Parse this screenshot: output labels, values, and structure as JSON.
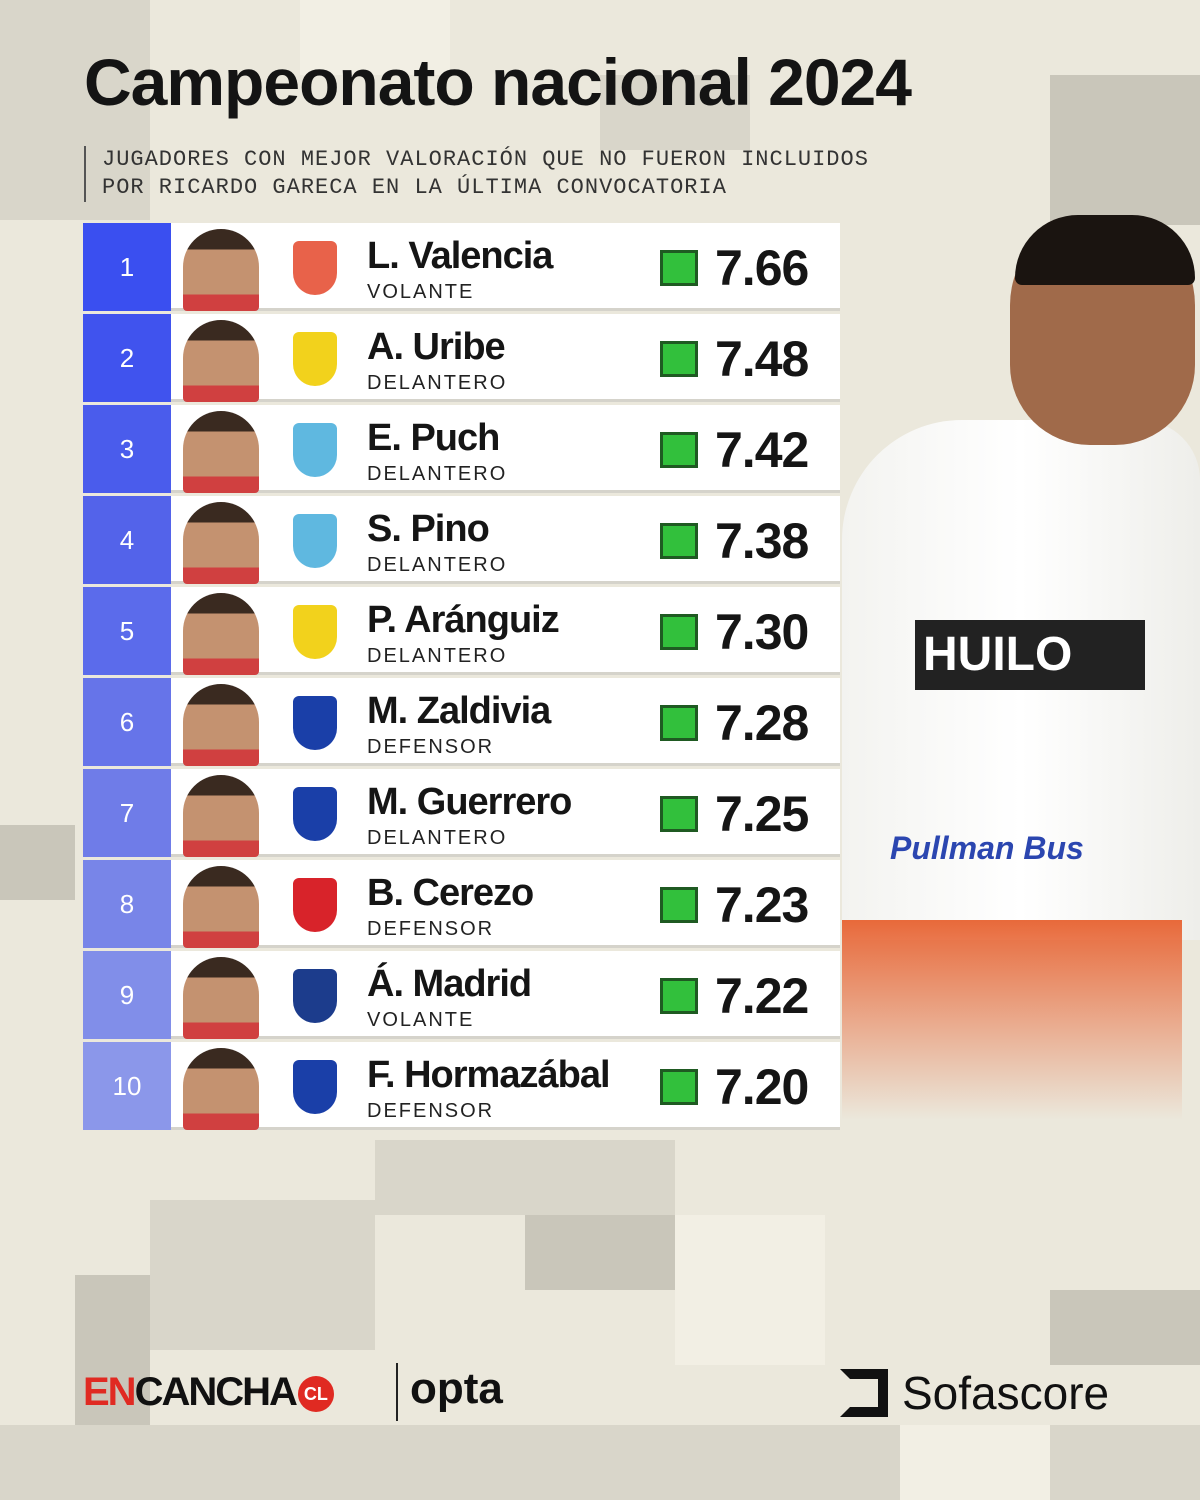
{
  "title": "Campeonato nacional 2024",
  "subtitle": [
    "JUGADORES CON MEJOR VALORACIÓN QUE NO FUERON INCLUIDOS",
    "POR RICARDO GARECA EN LA ÚLTIMA CONVOCATORIA"
  ],
  "rank_colors": [
    "#3a4ff0",
    "#4053ee",
    "#4a5cec",
    "#5363ea",
    "#5b6beb",
    "#6674e9",
    "#6f7ce8",
    "#7885e8",
    "#818ee9",
    "#8b97ea"
  ],
  "rating_color": "#32c03c",
  "players": [
    {
      "rank": "1",
      "name": "L. Valencia",
      "position": "VOLANTE",
      "rating": "7.66",
      "club_color": "#e8624a"
    },
    {
      "rank": "2",
      "name": "A. Uribe",
      "position": "DELANTERO",
      "rating": "7.48",
      "club_color": "#f2d21c"
    },
    {
      "rank": "3",
      "name": "E. Puch",
      "position": "DELANTERO",
      "rating": "7.42",
      "club_color": "#5fb8e0"
    },
    {
      "rank": "4",
      "name": "S. Pino",
      "position": "DELANTERO",
      "rating": "7.38",
      "club_color": "#5fb8e0"
    },
    {
      "rank": "5",
      "name": "P. Aránguiz",
      "position": "DELANTERO",
      "rating": "7.30",
      "club_color": "#f2d21c"
    },
    {
      "rank": "6",
      "name": "M. Zaldivia",
      "position": "DEFENSOR",
      "rating": "7.28",
      "club_color": "#1a3fa8"
    },
    {
      "rank": "7",
      "name": "M. Guerrero",
      "position": "DELANTERO",
      "rating": "7.25",
      "club_color": "#1a3fa8"
    },
    {
      "rank": "8",
      "name": "B. Cerezo",
      "position": "DEFENSOR",
      "rating": "7.23",
      "club_color": "#d8232a"
    },
    {
      "rank": "9",
      "name": "Á. Madrid",
      "position": "VOLANTE",
      "rating": "7.22",
      "club_color": "#1c3c8c"
    },
    {
      "rank": "10",
      "name": "F. Hormazábal",
      "position": "DEFENSOR",
      "rating": "7.20",
      "club_color": "#1a3fa8"
    }
  ],
  "jersey": {
    "sponsor": "HUILO",
    "sponsor2": "Pullman Bus"
  },
  "footer": {
    "encancha_en": "EN",
    "encancha_rest": "CANCHA",
    "encancha_cl": "CL",
    "opta": "opta",
    "sofascore": "Sofascore"
  }
}
